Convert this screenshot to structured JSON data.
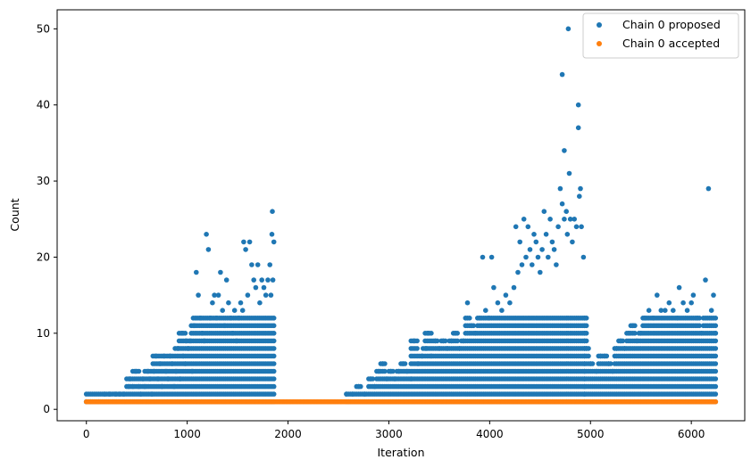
{
  "chart_data": {
    "type": "scatter",
    "title": "",
    "xlabel": "Iteration",
    "ylabel": "Count",
    "xlim": [
      -290,
      6530
    ],
    "ylim": [
      -1.5,
      52.5
    ],
    "xticks": [
      0,
      1000,
      2000,
      3000,
      4000,
      5000,
      6000
    ],
    "yticks": [
      0,
      10,
      20,
      30,
      40,
      50
    ],
    "grid": false,
    "legend_position": "top-right",
    "colors": {
      "proposed": "#1f77b4",
      "accepted": "#ff7f0e"
    },
    "series": [
      {
        "name": "Chain 0 proposed",
        "segments": [
          {
            "x_range": [
              0,
              1860
            ],
            "min_count": 1,
            "max_count": 26,
            "note_visible_extremes": [
              [
                1190,
                23
              ],
              [
                1210,
                21
              ],
              [
                1100,
                18
              ],
              [
                1560,
                22
              ],
              [
                1620,
                22
              ],
              [
                1845,
                26
              ],
              [
                1840,
                23
              ],
              [
                1860,
                22
              ]
            ]
          },
          {
            "x_range": [
              2580,
              4940
            ],
            "min_count": 1,
            "max_count": 50,
            "note_visible_extremes": [
              [
                4780,
                50
              ],
              [
                4720,
                44
              ],
              [
                4880,
                40
              ],
              [
                4880,
                37
              ],
              [
                4740,
                34
              ],
              [
                4790,
                31
              ],
              [
                4700,
                29
              ],
              [
                4900,
                29
              ],
              [
                4880,
                28
              ],
              [
                4720,
                27
              ],
              [
                4540,
                26
              ],
              [
                4760,
                26
              ]
            ]
          },
          {
            "x_range": [
              4940,
              6240
            ],
            "min_count": 1,
            "max_count": 29,
            "note_visible_extremes": [
              [
                6170,
                29
              ],
              [
                6140,
                17
              ],
              [
                6220,
                15
              ],
              [
                5660,
                15
              ],
              [
                5880,
                16
              ],
              [
                6020,
                15
              ]
            ]
          }
        ]
      },
      {
        "name": "Chain 0 accepted",
        "x_range": [
          0,
          6240
        ],
        "constant_value": 1
      }
    ],
    "points_proposed": [
      [
        0,
        1
      ],
      [
        40,
        1
      ],
      [
        120,
        1
      ],
      [
        180,
        2
      ],
      [
        230,
        2
      ],
      [
        290,
        2
      ],
      [
        330,
        2
      ],
      [
        370,
        2
      ],
      [
        420,
        3
      ],
      [
        430,
        4
      ],
      [
        460,
        3
      ],
      [
        490,
        5
      ],
      [
        520,
        3
      ],
      [
        540,
        2
      ],
      [
        560,
        4
      ],
      [
        580,
        3
      ],
      [
        610,
        5
      ],
      [
        630,
        4
      ],
      [
        650,
        2
      ],
      [
        670,
        5
      ],
      [
        690,
        7
      ],
      [
        710,
        4
      ],
      [
        730,
        6
      ],
      [
        750,
        3
      ],
      [
        770,
        7
      ],
      [
        790,
        5
      ],
      [
        810,
        4
      ],
      [
        830,
        7
      ],
      [
        850,
        6
      ],
      [
        870,
        3
      ],
      [
        890,
        5
      ],
      [
        910,
        8
      ],
      [
        930,
        4
      ],
      [
        950,
        10
      ],
      [
        960,
        7
      ],
      [
        980,
        6
      ],
      [
        990,
        9
      ],
      [
        1010,
        8
      ],
      [
        1030,
        9
      ],
      [
        1050,
        5
      ],
      [
        1070,
        11
      ],
      [
        1090,
        18
      ],
      [
        1110,
        15
      ],
      [
        1130,
        12
      ],
      [
        1150,
        10
      ],
      [
        1170,
        9
      ],
      [
        1190,
        23
      ],
      [
        1210,
        21
      ],
      [
        1230,
        12
      ],
      [
        1250,
        14
      ],
      [
        1270,
        15
      ],
      [
        1290,
        12
      ],
      [
        1310,
        15
      ],
      [
        1330,
        18
      ],
      [
        1350,
        13
      ],
      [
        1370,
        11
      ],
      [
        1390,
        17
      ],
      [
        1410,
        14
      ],
      [
        1430,
        12
      ],
      [
        1450,
        10
      ],
      [
        1470,
        13
      ],
      [
        1490,
        9
      ],
      [
        1510,
        12
      ],
      [
        1530,
        14
      ],
      [
        1550,
        13
      ],
      [
        1560,
        22
      ],
      [
        1580,
        21
      ],
      [
        1600,
        15
      ],
      [
        1620,
        22
      ],
      [
        1640,
        19
      ],
      [
        1660,
        17
      ],
      [
        1680,
        16
      ],
      [
        1700,
        19
      ],
      [
        1720,
        14
      ],
      [
        1740,
        17
      ],
      [
        1760,
        16
      ],
      [
        1780,
        15
      ],
      [
        1800,
        17
      ],
      [
        1820,
        19
      ],
      [
        1840,
        23
      ],
      [
        1845,
        26
      ],
      [
        1860,
        22
      ],
      [
        1850,
        17
      ],
      [
        1830,
        15
      ],
      [
        2580,
        2
      ],
      [
        2640,
        2
      ],
      [
        2700,
        3
      ],
      [
        2760,
        2
      ],
      [
        2820,
        4
      ],
      [
        2860,
        3
      ],
      [
        2900,
        5
      ],
      [
        2940,
        6
      ],
      [
        2980,
        4
      ],
      [
        3020,
        5
      ],
      [
        3060,
        4
      ],
      [
        3100,
        5
      ],
      [
        3140,
        6
      ],
      [
        3180,
        5
      ],
      [
        3220,
        4
      ],
      [
        3250,
        9
      ],
      [
        3290,
        6
      ],
      [
        3330,
        7
      ],
      [
        3370,
        8
      ],
      [
        3390,
        10
      ],
      [
        3420,
        7
      ],
      [
        3460,
        9
      ],
      [
        3500,
        8
      ],
      [
        3540,
        9
      ],
      [
        3580,
        8
      ],
      [
        3620,
        9
      ],
      [
        3660,
        10
      ],
      [
        3700,
        8
      ],
      [
        3740,
        9
      ],
      [
        3780,
        14
      ],
      [
        3820,
        11
      ],
      [
        3860,
        10
      ],
      [
        3900,
        12
      ],
      [
        3930,
        20
      ],
      [
        3960,
        13
      ],
      [
        3990,
        12
      ],
      [
        4020,
        20
      ],
      [
        4040,
        16
      ],
      [
        4080,
        14
      ],
      [
        4120,
        13
      ],
      [
        4160,
        15
      ],
      [
        4200,
        14
      ],
      [
        4240,
        16
      ],
      [
        4260,
        24
      ],
      [
        4280,
        18
      ],
      [
        4300,
        22
      ],
      [
        4320,
        19
      ],
      [
        4340,
        25
      ],
      [
        4360,
        20
      ],
      [
        4380,
        24
      ],
      [
        4400,
        21
      ],
      [
        4420,
        19
      ],
      [
        4440,
        23
      ],
      [
        4460,
        22
      ],
      [
        4480,
        20
      ],
      [
        4500,
        18
      ],
      [
        4520,
        21
      ],
      [
        4540,
        26
      ],
      [
        4560,
        23
      ],
      [
        4580,
        20
      ],
      [
        4600,
        25
      ],
      [
        4620,
        22
      ],
      [
        4640,
        21
      ],
      [
        4660,
        19
      ],
      [
        4680,
        24
      ],
      [
        4700,
        29
      ],
      [
        4720,
        44
      ],
      [
        4720,
        27
      ],
      [
        4740,
        34
      ],
      [
        4740,
        25
      ],
      [
        4760,
        26
      ],
      [
        4770,
        23
      ],
      [
        4780,
        50
      ],
      [
        4790,
        31
      ],
      [
        4800,
        25
      ],
      [
        4820,
        22
      ],
      [
        4840,
        25
      ],
      [
        4860,
        24
      ],
      [
        4880,
        40
      ],
      [
        4880,
        37
      ],
      [
        4890,
        28
      ],
      [
        4900,
        29
      ],
      [
        4910,
        24
      ],
      [
        4930,
        20
      ],
      [
        4960,
        8
      ],
      [
        5000,
        6
      ],
      [
        5060,
        5
      ],
      [
        5100,
        7
      ],
      [
        5140,
        7
      ],
      [
        5180,
        6
      ],
      [
        5220,
        5
      ],
      [
        5260,
        8
      ],
      [
        5300,
        9
      ],
      [
        5340,
        8
      ],
      [
        5380,
        10
      ],
      [
        5420,
        11
      ],
      [
        5460,
        9
      ],
      [
        5500,
        10
      ],
      [
        5540,
        12
      ],
      [
        5580,
        13
      ],
      [
        5620,
        12
      ],
      [
        5660,
        15
      ],
      [
        5700,
        13
      ],
      [
        5740,
        13
      ],
      [
        5780,
        14
      ],
      [
        5820,
        13
      ],
      [
        5860,
        12
      ],
      [
        5880,
        16
      ],
      [
        5920,
        14
      ],
      [
        5960,
        13
      ],
      [
        6000,
        14
      ],
      [
        6020,
        15
      ],
      [
        6060,
        12
      ],
      [
        6100,
        10
      ],
      [
        6140,
        17
      ],
      [
        6170,
        29
      ],
      [
        6200,
        13
      ],
      [
        6220,
        15
      ],
      [
        6240,
        10
      ]
    ]
  }
}
